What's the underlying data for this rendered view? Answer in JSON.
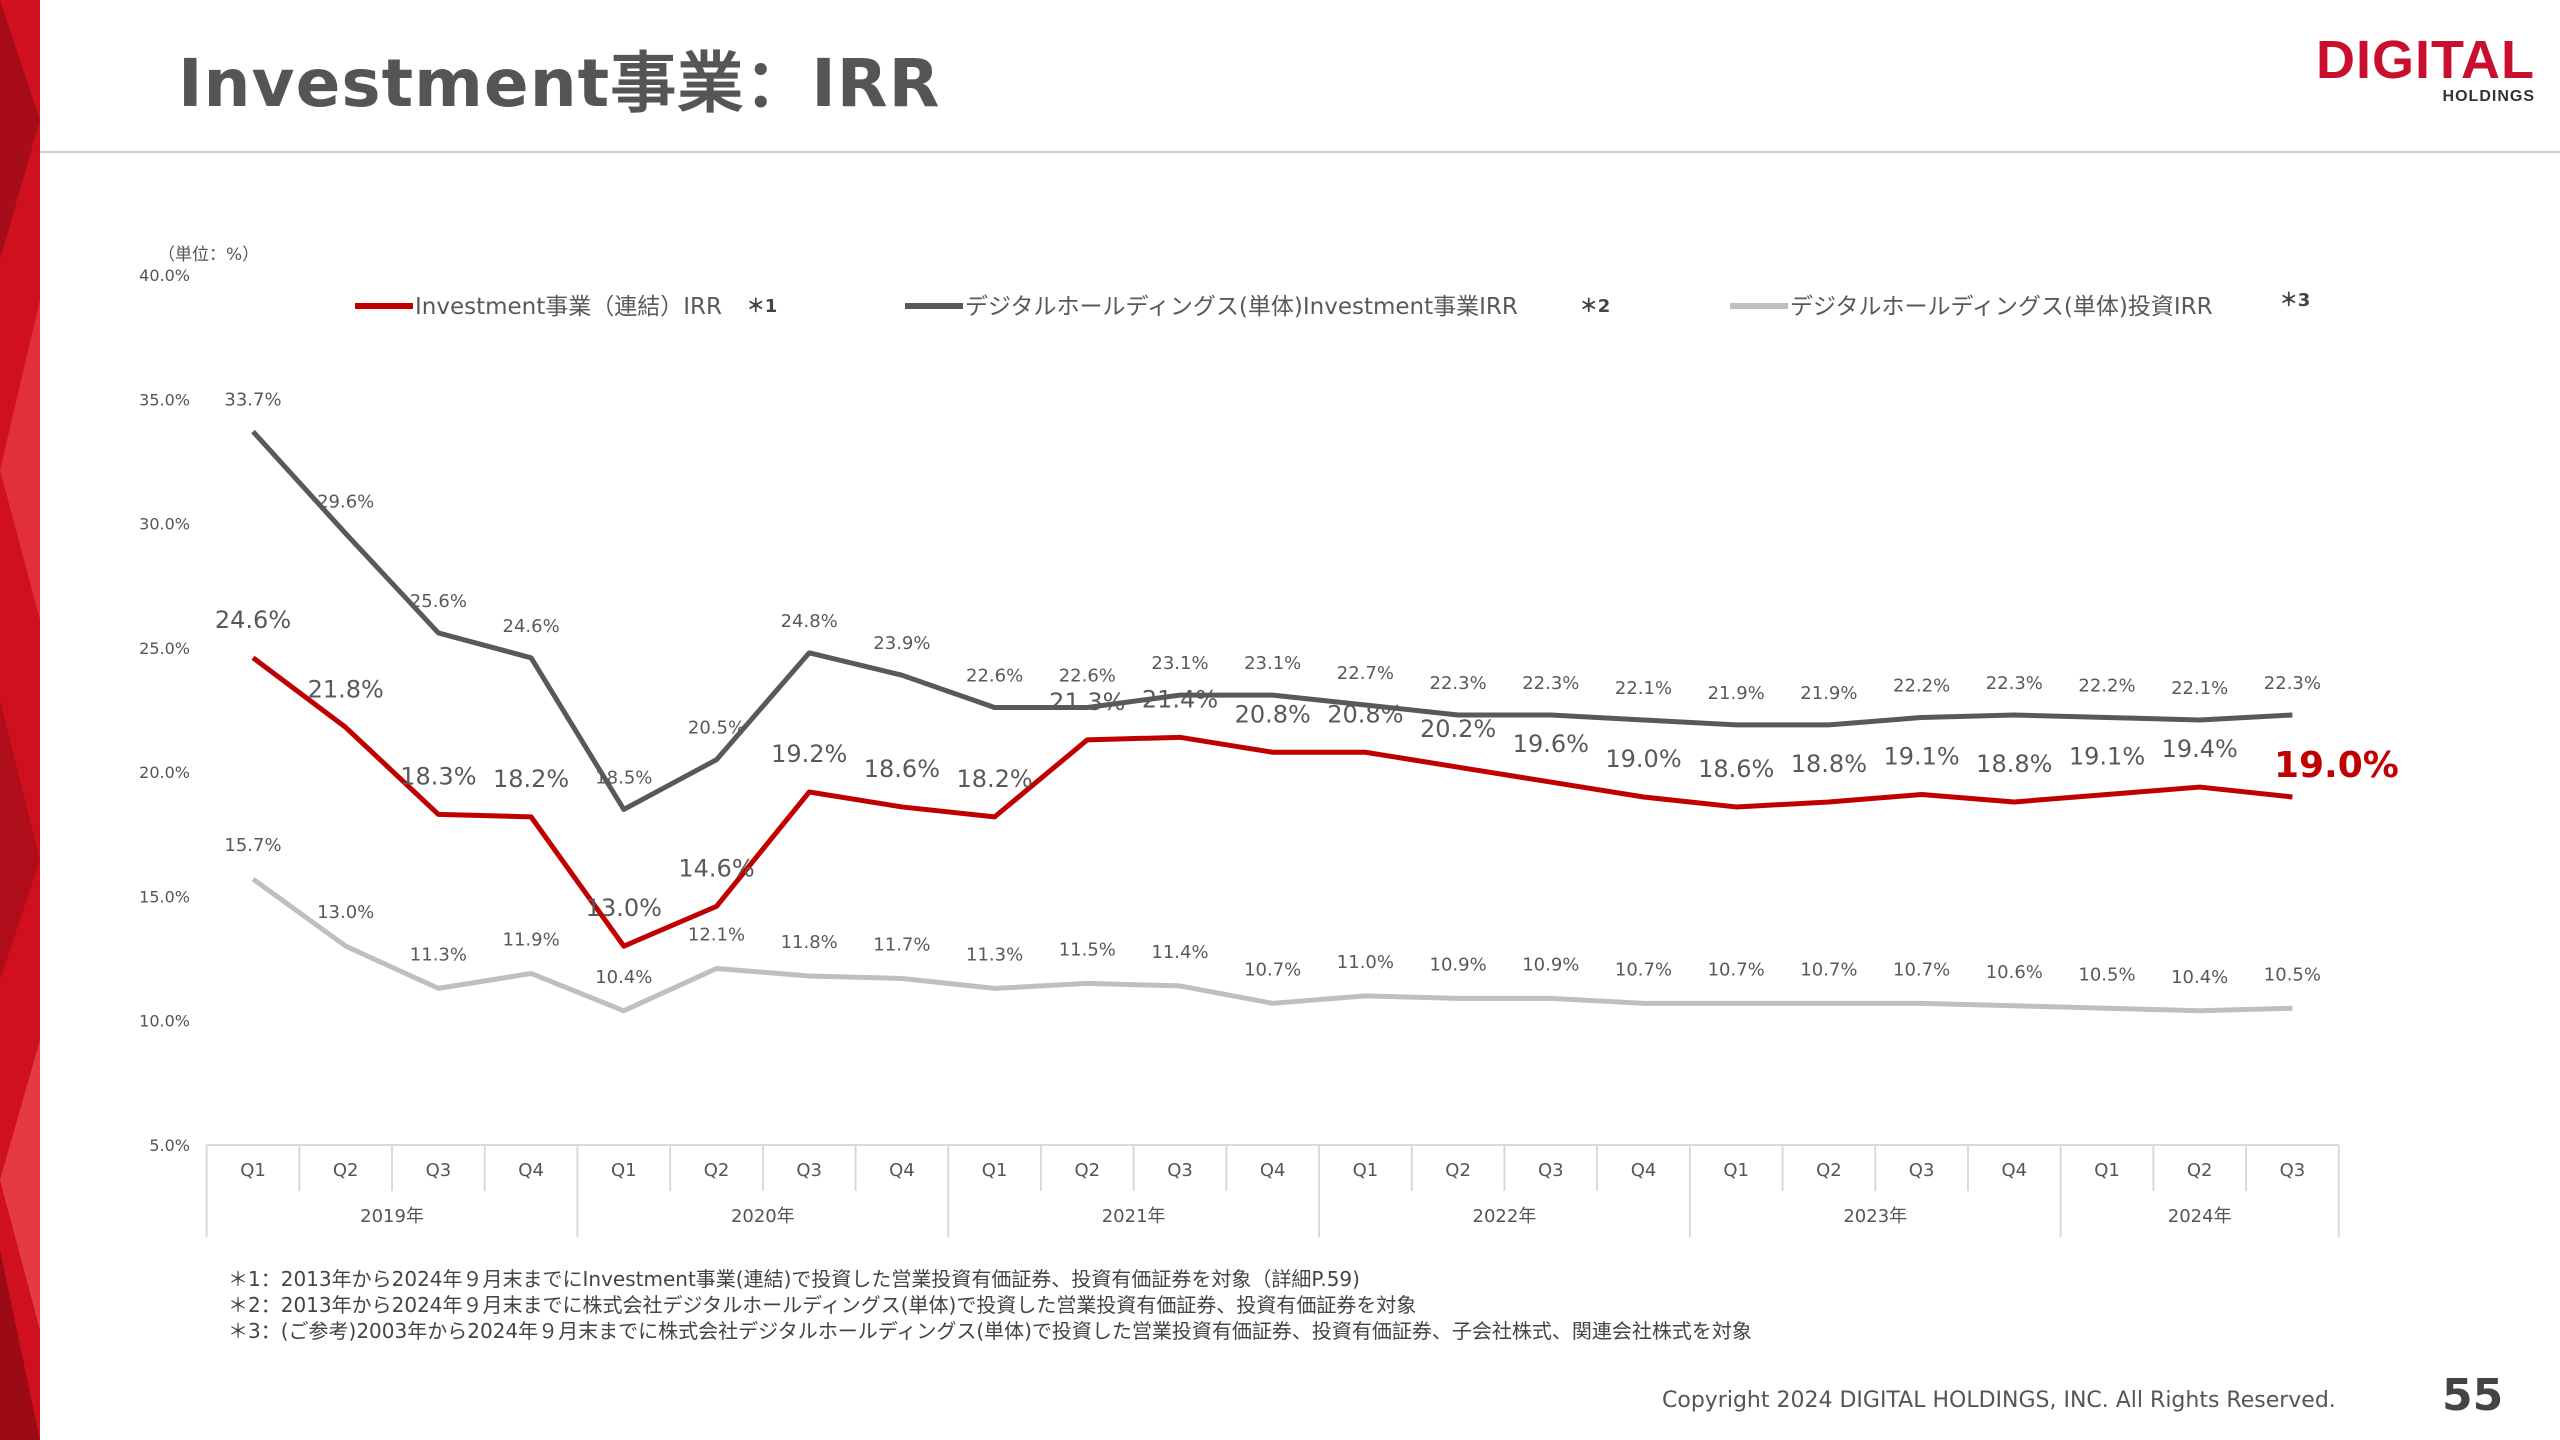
{
  "slide": {
    "title": "Investment事業：IRR",
    "logo_word": "DIGITAL",
    "logo_sub": "HOLDINGS",
    "page_number": "55",
    "copyright": "Copyright 2024 DIGITAL HOLDINGS, INC. All Rights Reserved.",
    "notes": [
      "＊1：2013年から2024年９月末までにInvestment事業(連結)で投資した営業投資有価証券、投資有価証券を対象（詳細P.59)",
      "＊2：2013年から2024年９月末までに株式会社デジタルホールディングス(単体)で投資した営業投資有価証券、投資有価証券を対象",
      "＊3：(ご参考)2003年から2024年９月末までに株式会社デジタルホールディングス(単体)で投資した営業投資有価証券、投資有価証券、子会社株式、関連会社株式を対象"
    ],
    "brand_color": "#c8102e"
  },
  "chart_data": {
    "type": "line",
    "unit_label": "（単位：%）",
    "y_ticks": [
      "40.0%",
      "35.0%",
      "30.0%",
      "25.0%",
      "20.0%",
      "15.0%",
      "10.0%",
      "5.0%"
    ],
    "ylim": [
      5,
      40
    ],
    "grid": false,
    "legend_position": "top",
    "categories": [
      "Q1",
      "Q2",
      "Q3",
      "Q4",
      "Q1",
      "Q2",
      "Q3",
      "Q4",
      "Q1",
      "Q2",
      "Q3",
      "Q4",
      "Q1",
      "Q2",
      "Q3",
      "Q4",
      "Q1",
      "Q2",
      "Q3",
      "Q4",
      "Q1",
      "Q2",
      "Q3"
    ],
    "years": [
      {
        "label": "2019年",
        "quarters": 4
      },
      {
        "label": "2020年",
        "quarters": 4
      },
      {
        "label": "2021年",
        "quarters": 4
      },
      {
        "label": "2022年",
        "quarters": 4
      },
      {
        "label": "2023年",
        "quarters": 4
      },
      {
        "label": "2024年",
        "quarters": 3
      }
    ],
    "series": [
      {
        "name": "Investment事業（連結）IRR",
        "note_mark": "＊1",
        "color": "#c00000",
        "values": [
          24.6,
          21.8,
          18.3,
          18.2,
          13.0,
          14.6,
          19.2,
          18.6,
          18.2,
          21.3,
          21.4,
          20.8,
          20.8,
          20.2,
          19.6,
          19.0,
          18.6,
          18.8,
          19.1,
          18.8,
          19.1,
          19.4,
          19.0
        ],
        "labels": [
          "24.6%",
          "21.8%",
          "18.3%",
          "18.2%",
          "13.0%",
          "14.6%",
          "19.2%",
          "18.6%",
          "18.2%",
          "21.3%",
          "21.4%",
          "20.8%",
          "20.8%",
          "20.2%",
          "19.6%",
          "19.0%",
          "18.6%",
          "18.8%",
          "19.1%",
          "18.8%",
          "19.1%",
          "19.4%",
          "19.0%"
        ]
      },
      {
        "name": "デジタルホールディングス(単体)Investment事業IRR",
        "note_mark": "＊2",
        "color": "#595959",
        "values": [
          33.7,
          29.6,
          25.6,
          24.6,
          18.5,
          20.5,
          24.8,
          23.9,
          22.6,
          22.6,
          23.1,
          23.1,
          22.7,
          22.3,
          22.3,
          22.1,
          21.9,
          21.9,
          22.2,
          22.3,
          22.2,
          22.1,
          22.3
        ],
        "labels": [
          "33.7%",
          "29.6%",
          "25.6%",
          "24.6%",
          "18.5%",
          "20.5%",
          "24.8%",
          "23.9%",
          "22.6%",
          "22.6%",
          "23.1%",
          "23.1%",
          "22.7%",
          "22.3%",
          "22.3%",
          "22.1%",
          "21.9%",
          "21.9%",
          "22.2%",
          "22.3%",
          "22.2%",
          "22.1%",
          "22.3%"
        ]
      },
      {
        "name": "デジタルホールディングス(単体)投資IRR",
        "note_mark": "＊3",
        "color": "#bfbfbf",
        "values": [
          15.7,
          13.0,
          11.3,
          11.9,
          10.4,
          12.1,
          11.8,
          11.7,
          11.3,
          11.5,
          11.4,
          10.7,
          11.0,
          10.9,
          10.9,
          10.7,
          10.7,
          10.7,
          10.7,
          10.6,
          10.5,
          10.4,
          10.5
        ],
        "labels": [
          "15.7%",
          "13.0%",
          "11.3%",
          "11.9%",
          "10.4%",
          "12.1%",
          "11.8%",
          "11.7%",
          "11.3%",
          "11.5%",
          "11.4%",
          "10.7%",
          "11.0%",
          "10.9%",
          "10.9%",
          "10.7%",
          "10.7%",
          "10.7%",
          "10.7%",
          "10.6%",
          "10.5%",
          "10.4%",
          "10.5%"
        ]
      }
    ],
    "highlight_label": "19.0%"
  }
}
